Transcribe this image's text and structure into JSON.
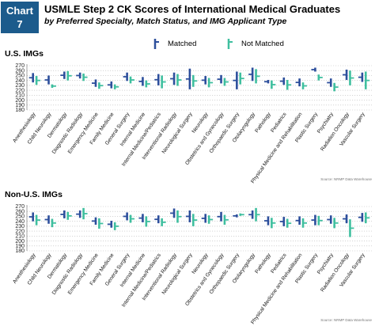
{
  "header": {
    "badge_word": "Chart",
    "badge_number": "7",
    "title": "USMLE Step 2 CK Scores of International Medical Graduates",
    "subtitle": "by Preferred Specialty, Match Status, and IMG Applicant Type"
  },
  "legend": {
    "items": [
      {
        "label": "Matched",
        "color": "#2d4f9c"
      },
      {
        "label": "Not Matched",
        "color": "#3fbf9f"
      }
    ]
  },
  "source_note": "Source: NRMP Data Warehouse",
  "chart_data": [
    {
      "type": "range-bar",
      "title": "U.S. IMGs",
      "ylim": [
        180,
        270
      ],
      "yticks": [
        180,
        190,
        200,
        210,
        220,
        230,
        240,
        250,
        260,
        270
      ],
      "grid": "horizontal dotted",
      "categories": [
        "Anesthesiology",
        "Child Neurology",
        "Dermatology",
        "Diagnostic Radiology",
        "Emergency Medicine",
        "Family Medicine",
        "General Surgery",
        "Internal Medicine",
        "Internal Medicine/Pediatrics",
        "Interventional Radiology",
        "Neurological Surgery",
        "Neurology",
        "Obstetrics and Gynecology",
        "Orthopaedic Surgery",
        "Otolaryngology",
        "Pathology",
        "Pediatrics",
        "Physical Medicine and Rehabilitation",
        "Plastic Surgery",
        "Psychiatry",
        "Radiation Oncology",
        "Vascular Surgery"
      ],
      "series": [
        {
          "name": "Matched",
          "ranges": [
            [
              236,
              255
            ],
            [
              232,
              250
            ],
            [
              243,
              258
            ],
            [
              244,
              256
            ],
            [
              227,
              242
            ],
            [
              224,
              238
            ],
            [
              239,
              256
            ],
            [
              229,
              247
            ],
            [
              230,
              253
            ],
            [
              231,
              256
            ],
            [
              222,
              264
            ],
            [
              232,
              249
            ],
            [
              234,
              251
            ],
            [
              222,
              258
            ],
            [
              239,
              266
            ],
            [
              234,
              241
            ],
            [
              231,
              246
            ],
            [
              228,
              244
            ],
            [
              258,
              266
            ],
            [
              227,
              244
            ],
            [
              241,
              262
            ],
            [
              237,
              256
            ]
          ]
        },
        {
          "name": "Not Matched",
          "ranges": [
            [
              231,
              249
            ],
            [
              225,
              232
            ],
            [
              240,
              259
            ],
            [
              239,
              254
            ],
            [
              223,
              236
            ],
            [
              222,
              232
            ],
            [
              234,
              248
            ],
            [
              226,
              240
            ],
            [
              224,
              250
            ],
            [
              229,
              253
            ],
            [
              227,
              251
            ],
            [
              226,
              245
            ],
            [
              229,
              245
            ],
            [
              232,
              256
            ],
            [
              234,
              263
            ],
            [
              223,
              240
            ],
            [
              221,
              241
            ],
            [
              222,
              236
            ],
            [
              240,
              252
            ],
            [
              218,
              235
            ],
            [
              230,
              260
            ],
            [
              222,
              258
            ]
          ]
        }
      ]
    },
    {
      "type": "range-bar",
      "title": "Non-U.S. IMGs",
      "ylim": [
        180,
        270
      ],
      "yticks": [
        180,
        190,
        200,
        210,
        220,
        230,
        240,
        250,
        260,
        270
      ],
      "grid": "horizontal dotted",
      "categories": [
        "Anesthesiology",
        "Child Neurology",
        "Dermatology",
        "Diagnostic Radiology",
        "Emergency Medicine",
        "Family Medicine",
        "General Surgery",
        "Internal Medicine",
        "Internal Medicine/Pediatrics",
        "Interventional Radiology",
        "Neurological Surgery",
        "Neurology",
        "Obstetrics and Gynecology",
        "Orthopaedic Surgery",
        "Otolaryngology",
        "Pathology",
        "Pediatrics",
        "Physical Medicine and Rehabilitation",
        "Plastic Surgery",
        "Psychiatry",
        "Radiation Oncology",
        "Vascular Surgery"
      ],
      "series": [
        {
          "name": "Matched",
          "ranges": [
            [
              240,
              258
            ],
            [
              235,
              252
            ],
            [
              246,
              262
            ],
            [
              247,
              262
            ],
            [
              233,
              248
            ],
            [
              227,
              241
            ],
            [
              242,
              258
            ],
            [
              238,
              255
            ],
            [
              236,
              252
            ],
            [
              247,
              266
            ],
            [
              238,
              262
            ],
            [
              237,
              255
            ],
            [
              240,
              259
            ],
            [
              248,
              254
            ],
            [
              245,
              262
            ],
            [
              232,
              250
            ],
            [
              230,
              249
            ],
            [
              233,
              250
            ],
            [
              232,
              253
            ],
            [
              235,
              252
            ],
            [
              236,
              254
            ],
            [
              239,
              257
            ]
          ]
        },
        {
          "name": "Not Matched",
          "ranges": [
            [
              232,
              253
            ],
            [
              228,
              245
            ],
            [
              243,
              259
            ],
            [
              244,
              267
            ],
            [
              225,
              246
            ],
            [
              222,
              238
            ],
            [
              237,
              253
            ],
            [
              229,
              250
            ],
            [
              230,
              246
            ],
            [
              237,
              262
            ],
            [
              230,
              255
            ],
            [
              235,
              252
            ],
            [
              233,
              253
            ],
            [
              251,
              256
            ],
            [
              240,
              267
            ],
            [
              226,
              247
            ],
            [
              227,
              245
            ],
            [
              227,
              246
            ],
            [
              232,
              251
            ],
            [
              226,
              247
            ],
            [
              208,
              244
            ],
            [
              236,
              258
            ]
          ]
        }
      ]
    }
  ]
}
